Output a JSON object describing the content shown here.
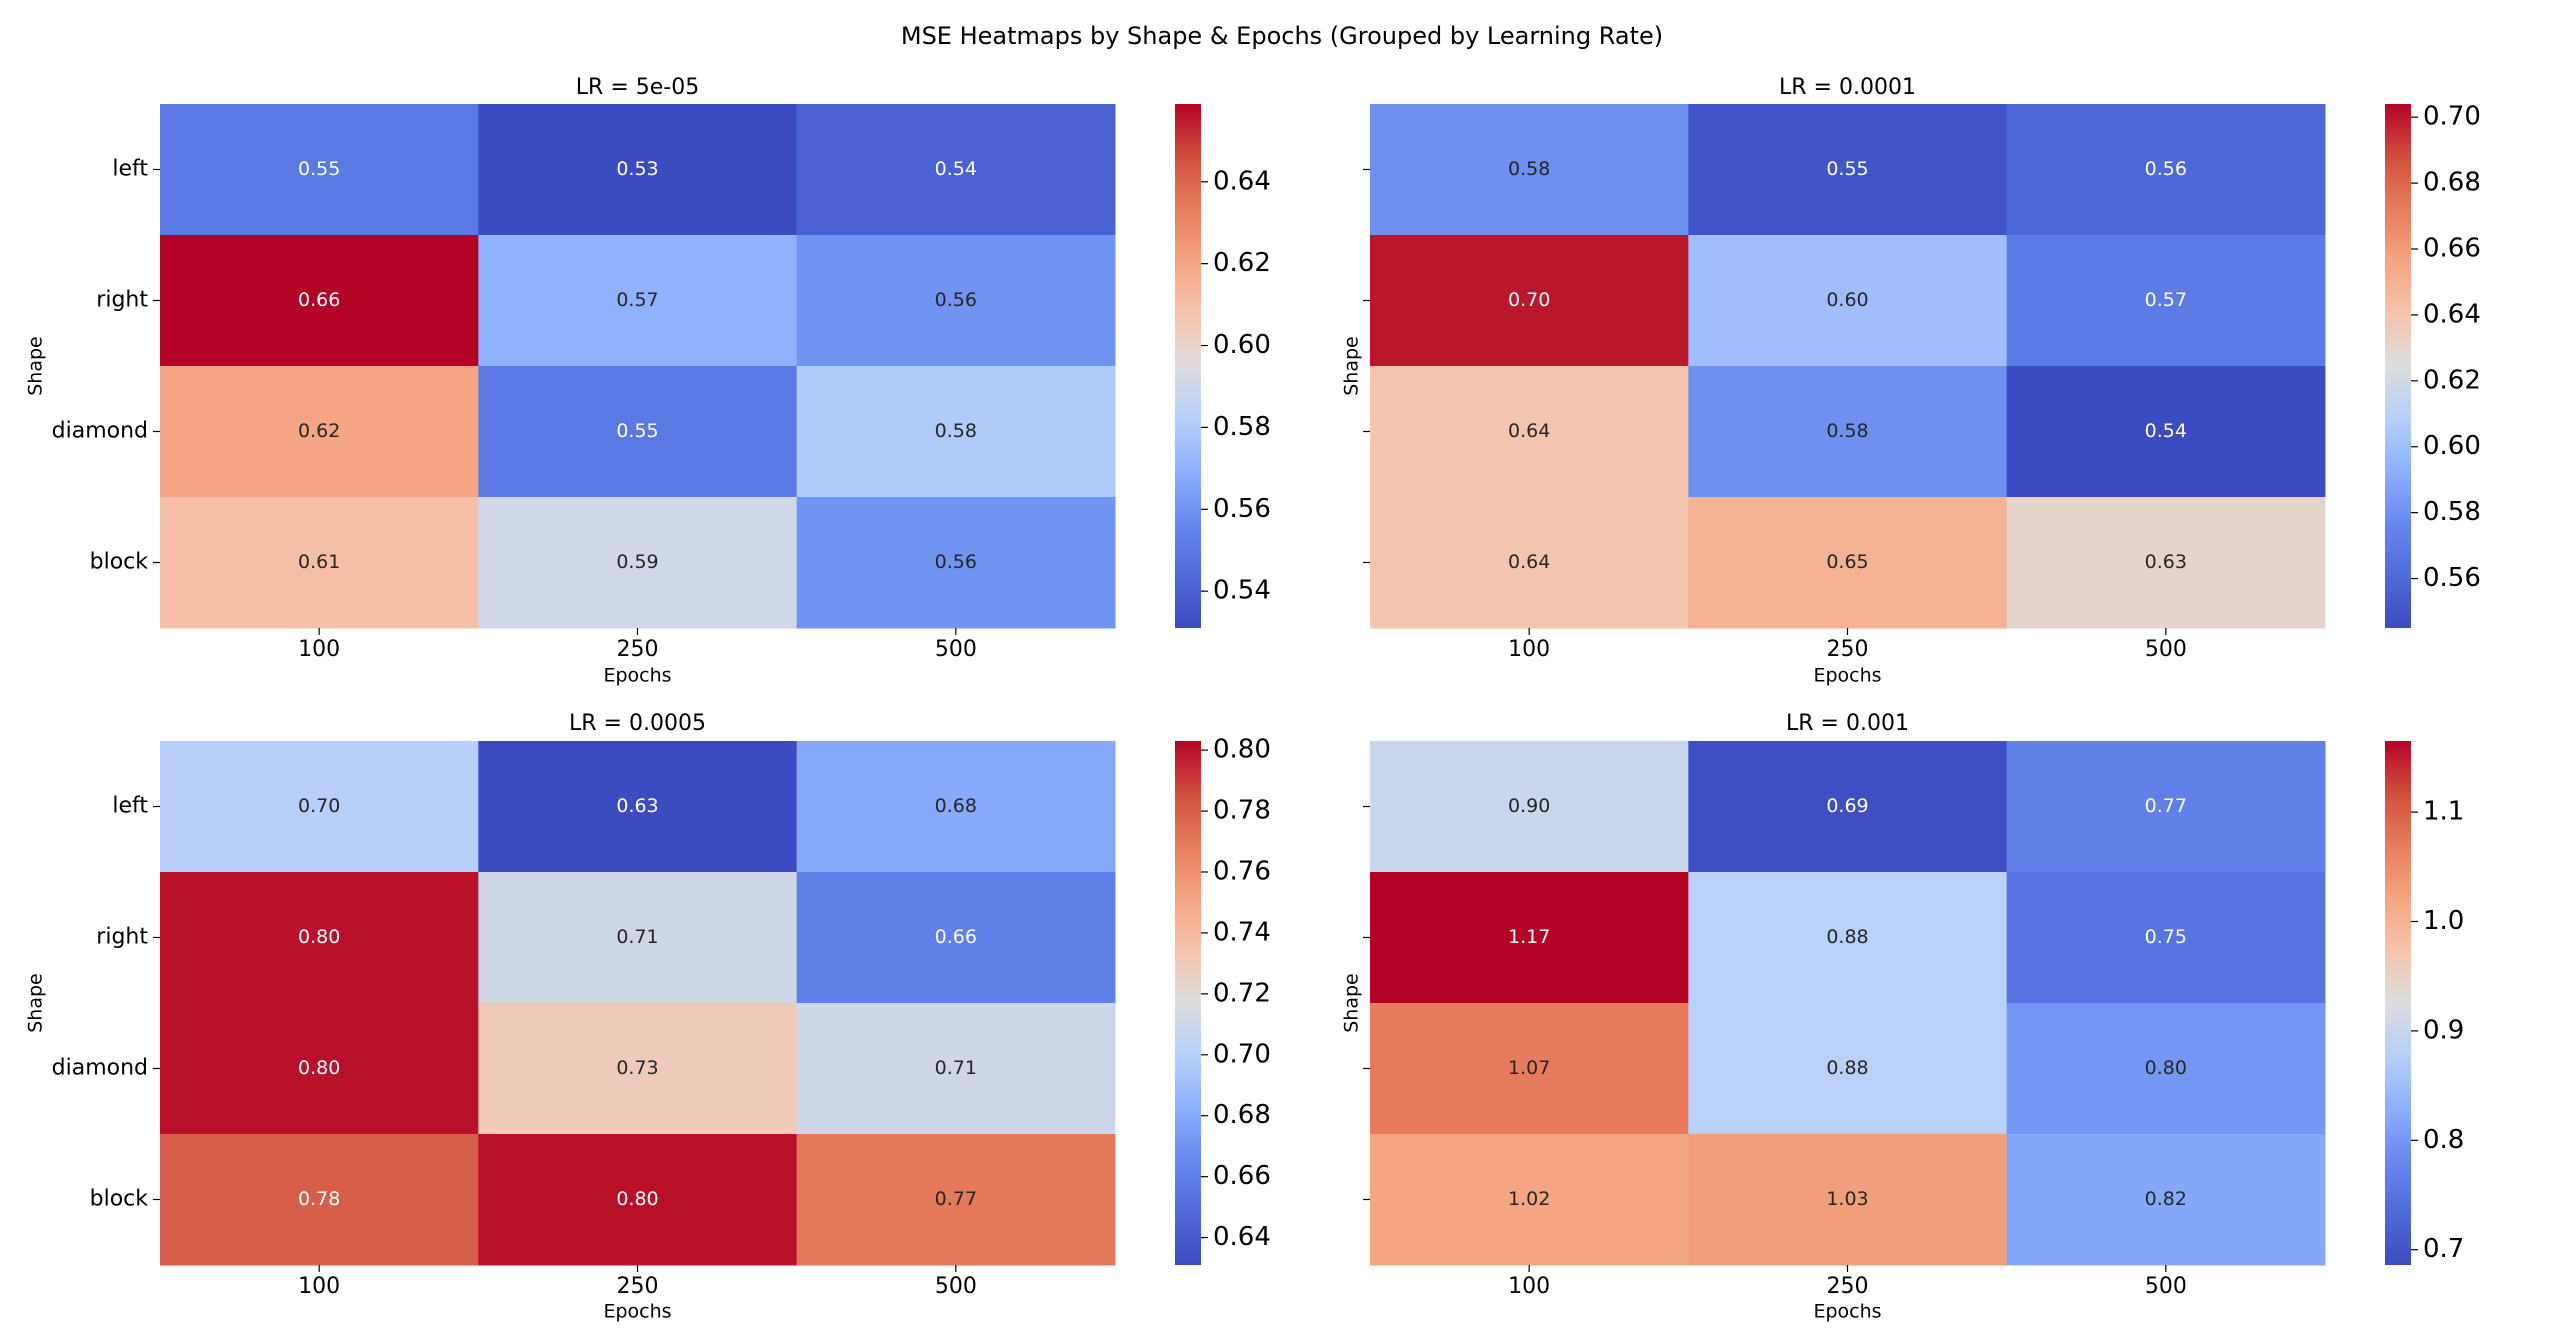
{
  "title": "MSE Heatmaps by Shape & Epochs (Grouped by Learning Rate)",
  "chart_data": [
    {
      "type": "heatmap",
      "title": "LR = 5e-05",
      "xlabel": "Epochs",
      "ylabel": "Shape",
      "x_categories": [
        "100",
        "250",
        "500"
      ],
      "y_categories": [
        "left",
        "right",
        "diamond",
        "block"
      ],
      "values": [
        [
          0.55,
          0.53,
          0.54
        ],
        [
          0.66,
          0.57,
          0.56
        ],
        [
          0.62,
          0.55,
          0.58
        ],
        [
          0.61,
          0.59,
          0.56
        ]
      ],
      "value_labels": [
        [
          "0.55",
          "0.53",
          "0.54"
        ],
        [
          "0.66",
          "0.57",
          "0.56"
        ],
        [
          "0.62",
          "0.55",
          "0.58"
        ],
        [
          "0.61",
          "0.59",
          "0.56"
        ]
      ],
      "colormap": "coolwarm",
      "color_range": [
        0.531,
        0.659
      ],
      "colorbar_ticks": [
        0.54,
        0.56,
        0.58,
        0.6,
        0.62,
        0.64
      ],
      "colorbar_tick_labels": [
        "0.54",
        "0.56",
        "0.58",
        "0.60",
        "0.62",
        "0.64"
      ],
      "show_y_tick_labels": true
    },
    {
      "type": "heatmap",
      "title": "LR = 0.0001",
      "xlabel": "Epochs",
      "ylabel": "Shape",
      "x_categories": [
        "100",
        "250",
        "500"
      ],
      "y_categories": [
        "left",
        "right",
        "diamond",
        "block"
      ],
      "values": [
        [
          0.58,
          0.55,
          0.56
        ],
        [
          0.7,
          0.6,
          0.57
        ],
        [
          0.64,
          0.58,
          0.54
        ],
        [
          0.64,
          0.65,
          0.63
        ]
      ],
      "value_labels": [
        [
          "0.58",
          "0.55",
          "0.56"
        ],
        [
          "0.70",
          "0.60",
          "0.57"
        ],
        [
          "0.64",
          "0.58",
          "0.54"
        ],
        [
          "0.64",
          "0.65",
          "0.63"
        ]
      ],
      "colormap": "coolwarm",
      "color_range": [
        0.545,
        0.704
      ],
      "colorbar_ticks": [
        0.56,
        0.58,
        0.6,
        0.62,
        0.64,
        0.66,
        0.68,
        0.7
      ],
      "colorbar_tick_labels": [
        "0.56",
        "0.58",
        "0.60",
        "0.62",
        "0.64",
        "0.66",
        "0.68",
        "0.70"
      ],
      "show_y_tick_labels": false
    },
    {
      "type": "heatmap",
      "title": "LR = 0.0005",
      "xlabel": "Epochs",
      "ylabel": "Shape",
      "x_categories": [
        "100",
        "250",
        "500"
      ],
      "y_categories": [
        "left",
        "right",
        "diamond",
        "block"
      ],
      "values": [
        [
          0.7,
          0.63,
          0.68
        ],
        [
          0.8,
          0.71,
          0.66
        ],
        [
          0.8,
          0.73,
          0.71
        ],
        [
          0.78,
          0.8,
          0.77
        ]
      ],
      "value_labels": [
        [
          "0.70",
          "0.63",
          "0.68"
        ],
        [
          "0.80",
          "0.71",
          "0.66"
        ],
        [
          "0.80",
          "0.73",
          "0.71"
        ],
        [
          "0.78",
          "0.80",
          "0.77"
        ]
      ],
      "colormap": "coolwarm",
      "color_range": [
        0.631,
        0.803
      ],
      "colorbar_ticks": [
        0.64,
        0.66,
        0.68,
        0.7,
        0.72,
        0.74,
        0.76,
        0.78,
        0.8
      ],
      "colorbar_tick_labels": [
        "0.64",
        "0.66",
        "0.68",
        "0.70",
        "0.72",
        "0.74",
        "0.76",
        "0.78",
        "0.80"
      ],
      "show_y_tick_labels": true
    },
    {
      "type": "heatmap",
      "title": "LR = 0.001",
      "xlabel": "Epochs",
      "ylabel": "Shape",
      "x_categories": [
        "100",
        "250",
        "500"
      ],
      "y_categories": [
        "left",
        "right",
        "diamond",
        "block"
      ],
      "values": [
        [
          0.9,
          0.69,
          0.77
        ],
        [
          1.17,
          0.88,
          0.75
        ],
        [
          1.07,
          0.88,
          0.8
        ],
        [
          1.02,
          1.03,
          0.82
        ]
      ],
      "value_labels": [
        [
          "0.90",
          "0.69",
          "0.77"
        ],
        [
          "1.17",
          "0.88",
          "0.75"
        ],
        [
          "1.07",
          "0.88",
          "0.80"
        ],
        [
          "1.02",
          "1.03",
          "0.82"
        ]
      ],
      "colormap": "coolwarm",
      "color_range": [
        0.686,
        1.165
      ],
      "colorbar_ticks": [
        0.7,
        0.8,
        0.9,
        1.0,
        1.1
      ],
      "colorbar_tick_labels": [
        "0.7",
        "0.8",
        "0.9",
        "1.0",
        "1.1"
      ],
      "show_y_tick_labels": false
    }
  ]
}
